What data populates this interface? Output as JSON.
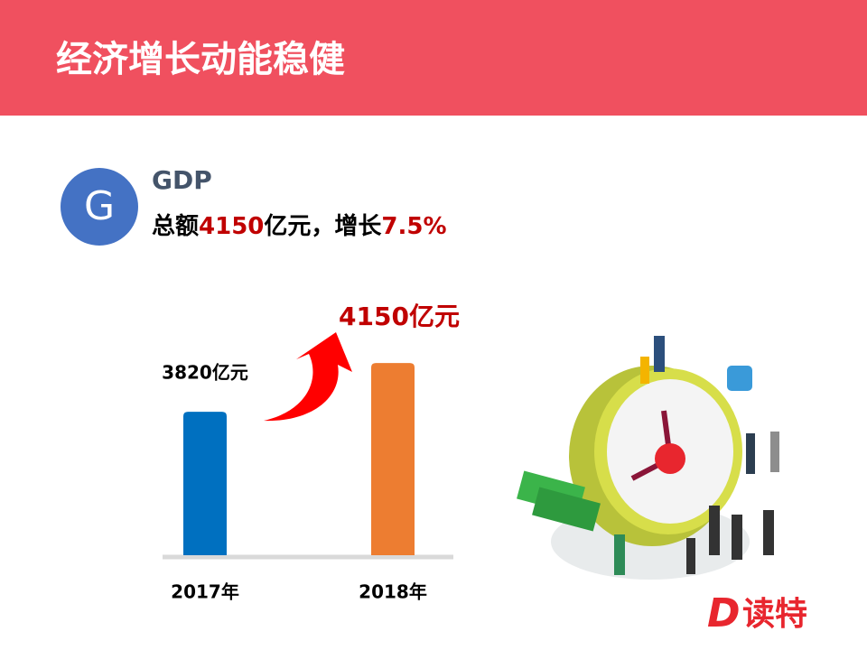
{
  "header": {
    "title": "经济增长动能稳健"
  },
  "badge": "G",
  "summary": {
    "label": "GDP",
    "parts": [
      "总额",
      "4150",
      "亿元，增长",
      "7.5%"
    ]
  },
  "chart_data": {
    "type": "bar",
    "categories": [
      "2017年",
      "2018年"
    ],
    "values": [
      3820,
      4150
    ],
    "value_labels": [
      "3820亿元",
      "4150亿元"
    ],
    "colors": [
      "#0070c0",
      "#ed7d31"
    ],
    "ylim": [
      2850,
      4450
    ]
  },
  "logo": "读特"
}
